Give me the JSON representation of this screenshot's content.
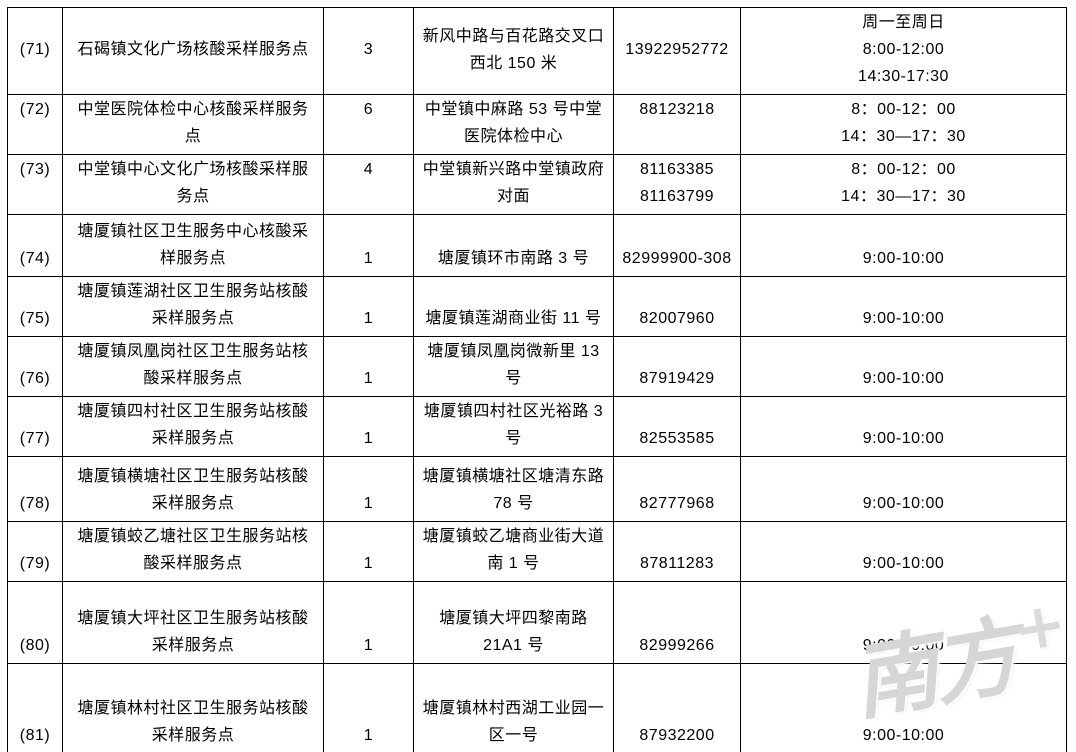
{
  "watermark": {
    "brand": "南方",
    "plus": "+"
  },
  "table": {
    "rows": [
      {
        "cells": [
          {
            "lines": [
              "(71)"
            ],
            "v": "c"
          },
          {
            "lines": [
              "石碣镇文化广场核酸采样服务点"
            ],
            "v": "c"
          },
          {
            "lines": [
              "3"
            ],
            "v": "c"
          },
          {
            "lines": [
              "新风中路与百花路交叉口",
              "西北 150 米"
            ],
            "v": "c"
          },
          {
            "lines": [
              "13922952772"
            ],
            "v": "c"
          },
          {
            "lines": [
              "周一至周日",
              "8:00-12:00",
              "14:30-17:30"
            ],
            "v": "c"
          }
        ]
      },
      {
        "cells": [
          {
            "lines": [
              "(72)"
            ],
            "v": "t"
          },
          {
            "lines": [
              "中堂医院体检中心核酸采样服务",
              "点"
            ],
            "v": "c"
          },
          {
            "lines": [
              "6"
            ],
            "v": "t"
          },
          {
            "lines": [
              "中堂镇中麻路 53 号中堂",
              "医院体检中心"
            ],
            "v": "c"
          },
          {
            "lines": [
              "88123218"
            ],
            "v": "t"
          },
          {
            "lines": [
              "8：00-12：00",
              "14：30—17：30"
            ],
            "v": "c"
          }
        ]
      },
      {
        "cells": [
          {
            "lines": [
              "(73)"
            ],
            "v": "t"
          },
          {
            "lines": [
              "中堂镇中心文化广场核酸采样服",
              "务点"
            ],
            "v": "c"
          },
          {
            "lines": [
              "4"
            ],
            "v": "t"
          },
          {
            "lines": [
              "中堂镇新兴路中堂镇政府",
              "对面"
            ],
            "v": "c"
          },
          {
            "lines": [
              "81163385",
              "81163799"
            ],
            "v": "c"
          },
          {
            "lines": [
              "8：00-12：00",
              "14：30—17：30"
            ],
            "v": "c"
          }
        ]
      },
      {
        "cells": [
          {
            "lines": [
              "(74)"
            ],
            "v": "b"
          },
          {
            "lines": [
              "塘厦镇社区卫生服务中心核酸采",
              "样服务点"
            ],
            "v": "b"
          },
          {
            "lines": [
              "1"
            ],
            "v": "b"
          },
          {
            "lines": [
              "塘厦镇环市南路 3 号"
            ],
            "v": "b"
          },
          {
            "lines": [
              "82999900-308"
            ],
            "v": "b"
          },
          {
            "lines": [
              "9:00-10:00"
            ],
            "v": "b"
          }
        ]
      },
      {
        "cells": [
          {
            "lines": [
              "(75)"
            ],
            "v": "b"
          },
          {
            "lines": [
              "塘厦镇莲湖社区卫生服务站核酸",
              "采样服务点"
            ],
            "v": "b"
          },
          {
            "lines": [
              "1"
            ],
            "v": "b"
          },
          {
            "lines": [
              "塘厦镇莲湖商业街 11 号"
            ],
            "v": "b"
          },
          {
            "lines": [
              "82007960"
            ],
            "v": "b"
          },
          {
            "lines": [
              "9:00-10:00"
            ],
            "v": "b"
          }
        ]
      },
      {
        "cells": [
          {
            "lines": [
              "(76)"
            ],
            "v": "b"
          },
          {
            "lines": [
              "塘厦镇凤凰岗社区卫生服务站核",
              "酸采样服务点"
            ],
            "v": "b"
          },
          {
            "lines": [
              "1"
            ],
            "v": "b"
          },
          {
            "lines": [
              "塘厦镇凤凰岗微新里 13",
              "号"
            ],
            "v": "b"
          },
          {
            "lines": [
              "87919429"
            ],
            "v": "b"
          },
          {
            "lines": [
              "9:00-10:00"
            ],
            "v": "b"
          }
        ]
      },
      {
        "cells": [
          {
            "lines": [
              "(77)"
            ],
            "v": "b"
          },
          {
            "lines": [
              "塘厦镇四村社区卫生服务站核酸",
              "采样服务点"
            ],
            "v": "b"
          },
          {
            "lines": [
              "1"
            ],
            "v": "b"
          },
          {
            "lines": [
              "塘厦镇四村社区光裕路 3",
              "号"
            ],
            "v": "b"
          },
          {
            "lines": [
              "82553585"
            ],
            "v": "b"
          },
          {
            "lines": [
              "9:00-10:00"
            ],
            "v": "b"
          }
        ]
      },
      {
        "cells": [
          {
            "lines": [
              "(78)"
            ],
            "v": "b"
          },
          {
            "lines": [
              "塘厦镇横塘社区卫生服务站核酸",
              "采样服务点"
            ],
            "v": "b"
          },
          {
            "lines": [
              "1"
            ],
            "v": "b"
          },
          {
            "lines": [
              "塘厦镇横塘社区塘清东路",
              "78 号"
            ],
            "v": "b"
          },
          {
            "lines": [
              "82777968"
            ],
            "v": "b"
          },
          {
            "lines": [
              "9:00-10:00"
            ],
            "v": "b"
          }
        ]
      },
      {
        "cells": [
          {
            "lines": [
              "(79)"
            ],
            "v": "b"
          },
          {
            "lines": [
              "塘厦镇蛟乙塘社区卫生服务站核",
              "酸采样服务点"
            ],
            "v": "b"
          },
          {
            "lines": [
              "1"
            ],
            "v": "b"
          },
          {
            "lines": [
              "塘厦镇蛟乙塘商业街大道",
              "南 1 号"
            ],
            "v": "b"
          },
          {
            "lines": [
              "87811283"
            ],
            "v": "b"
          },
          {
            "lines": [
              "9:00-10:00"
            ],
            "v": "b"
          }
        ]
      },
      {
        "cells": [
          {
            "lines": [
              "(80)"
            ],
            "v": "b"
          },
          {
            "lines": [
              "塘厦镇大坪社区卫生服务站核酸",
              "采样服务点"
            ],
            "v": "b"
          },
          {
            "lines": [
              "1"
            ],
            "v": "b"
          },
          {
            "lines": [
              "塘厦镇大坪四黎南路",
              "21A1 号"
            ],
            "v": "b"
          },
          {
            "lines": [
              "82999266"
            ],
            "v": "b"
          },
          {
            "lines": [
              "9:00-10:00"
            ],
            "v": "b"
          }
        ]
      },
      {
        "cells": [
          {
            "lines": [
              "(81)"
            ],
            "v": "b"
          },
          {
            "lines": [
              "塘厦镇林村社区卫生服务站核酸",
              "采样服务点"
            ],
            "v": "b"
          },
          {
            "lines": [
              "1"
            ],
            "v": "b"
          },
          {
            "lines": [
              "塘厦镇林村西湖工业园一",
              "区一号"
            ],
            "v": "b"
          },
          {
            "lines": [
              "87932200"
            ],
            "v": "b"
          },
          {
            "lines": [
              "9:00-10:00"
            ],
            "v": "b"
          }
        ]
      }
    ]
  }
}
